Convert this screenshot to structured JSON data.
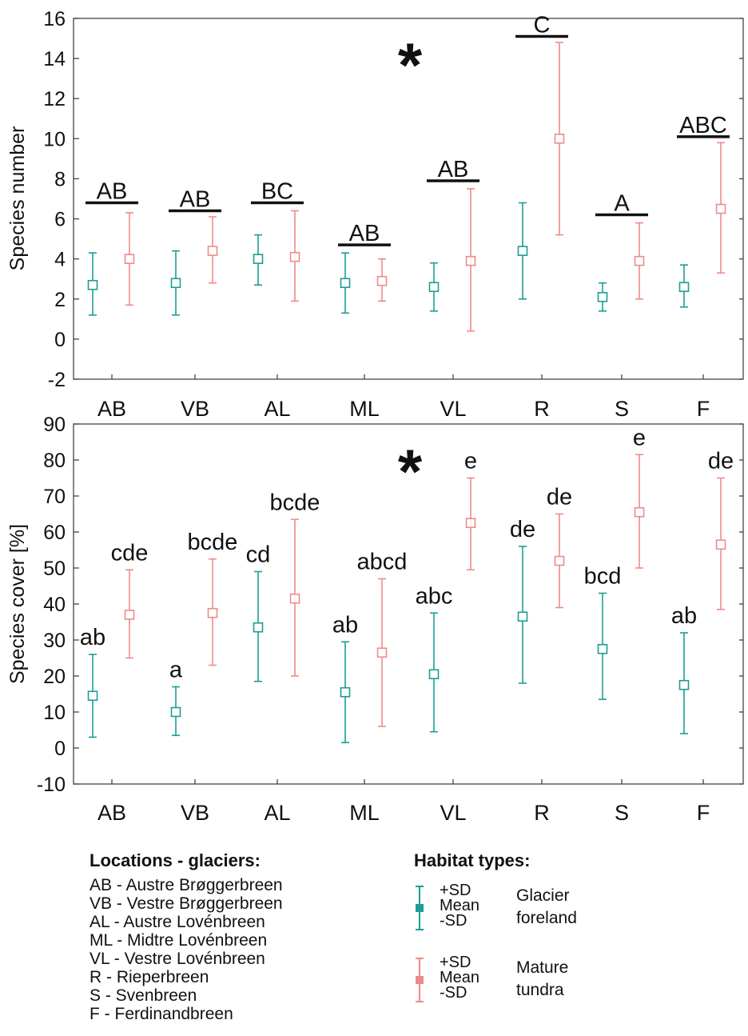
{
  "colors": {
    "glacier_foreland": "#1a9e96",
    "mature_tundra": "#f08a8a",
    "axis": "#444444",
    "text": "#111111"
  },
  "chart_data": [
    {
      "type": "scatter",
      "description": "Mean ± SD per location",
      "ylabel": "Species number",
      "ylim": [
        -2,
        16
      ],
      "yticks": [
        -2,
        0,
        2,
        4,
        6,
        8,
        10,
        12,
        14,
        16
      ],
      "categories": [
        "AB",
        "VB",
        "AL",
        "ML",
        "VL",
        "R",
        "S",
        "F"
      ],
      "significance_marker": "*",
      "series": [
        {
          "name": "Glacier foreland",
          "mean": [
            2.7,
            2.8,
            4.0,
            2.8,
            2.6,
            4.4,
            2.1,
            2.6
          ],
          "minus_sd": [
            1.2,
            1.2,
            2.7,
            1.3,
            1.4,
            2.0,
            1.4,
            1.6
          ],
          "plus_sd": [
            4.3,
            4.4,
            5.2,
            4.3,
            3.8,
            6.8,
            2.8,
            3.7
          ]
        },
        {
          "name": "Mature tundra",
          "mean": [
            4.0,
            4.4,
            4.1,
            2.9,
            3.9,
            10.0,
            3.9,
            6.5
          ],
          "minus_sd": [
            1.7,
            2.8,
            1.9,
            1.9,
            0.4,
            5.2,
            2.0,
            3.3
          ],
          "plus_sd": [
            6.3,
            6.1,
            6.4,
            4.0,
            7.5,
            14.8,
            5.8,
            9.8
          ]
        }
      ],
      "group_labels": [
        {
          "category": "AB",
          "label": "AB",
          "y": 6.8
        },
        {
          "category": "VB",
          "label": "AB",
          "y": 6.4
        },
        {
          "category": "AL",
          "label": "BC",
          "y": 6.8
        },
        {
          "category": "ML",
          "label": "AB",
          "y": 4.7
        },
        {
          "category": "VL",
          "label": "AB",
          "y": 7.9
        },
        {
          "category": "R",
          "label": "C",
          "y": 15.1
        },
        {
          "category": "S",
          "label": "A",
          "y": 6.2
        },
        {
          "category": "F",
          "label": "ABC",
          "y": 10.1
        }
      ]
    },
    {
      "type": "scatter",
      "description": "Mean ± SD per location",
      "ylabel": "Species cover [%]",
      "ylim": [
        -10,
        90
      ],
      "yticks": [
        -10,
        0,
        10,
        20,
        30,
        40,
        50,
        60,
        70,
        80,
        90
      ],
      "categories": [
        "AB",
        "VB",
        "AL",
        "ML",
        "VL",
        "R",
        "S",
        "F"
      ],
      "significance_marker": "*",
      "series": [
        {
          "name": "Glacier foreland",
          "mean": [
            14.5,
            10.0,
            33.5,
            15.5,
            20.5,
            36.5,
            27.5,
            17.5
          ],
          "minus_sd": [
            3.0,
            3.5,
            18.5,
            1.5,
            4.5,
            18.0,
            13.5,
            4.0
          ],
          "plus_sd": [
            26.0,
            17.0,
            49.0,
            29.5,
            37.5,
            56.0,
            43.0,
            32.0
          ],
          "letters": [
            "ab",
            "a",
            "cd",
            "ab",
            "abc",
            "de",
            "bcd",
            "ab"
          ]
        },
        {
          "name": "Mature tundra",
          "mean": [
            37.0,
            37.5,
            41.5,
            26.5,
            62.5,
            52.0,
            65.5,
            56.5
          ],
          "minus_sd": [
            25.0,
            23.0,
            20.0,
            6.0,
            49.5,
            39.0,
            50.0,
            38.5
          ],
          "plus_sd": [
            49.5,
            52.5,
            63.5,
            47.0,
            75.0,
            65.0,
            81.5,
            75.0
          ],
          "letters": [
            "cde",
            "bcde",
            "bcde",
            "abcd",
            "e",
            "de",
            "e",
            "de"
          ]
        }
      ]
    }
  ],
  "legend": {
    "locations_title": "Locations - glaciers:",
    "locations": [
      "AB - Austre Brøggerbreen",
      "VB - Vestre Brøggerbreen",
      "AL  - Austre Lovénbreen",
      "ML - Midtre Lovénbreen",
      "VL - Vestre Lovénbreen",
      "R - Rieperbreen",
      "S - Svenbreen",
      "F - Ferdinandbreen"
    ],
    "habitat_title": "Habitat types:",
    "habitats": [
      {
        "plus": "+SD",
        "mean": "Mean",
        "minus": "-SD",
        "name_line1": "Glacier",
        "name_line2": "foreland"
      },
      {
        "plus": "+SD",
        "mean": "Mean",
        "minus": "-SD",
        "name_line1": "Mature",
        "name_line2": "tundra"
      }
    ]
  }
}
